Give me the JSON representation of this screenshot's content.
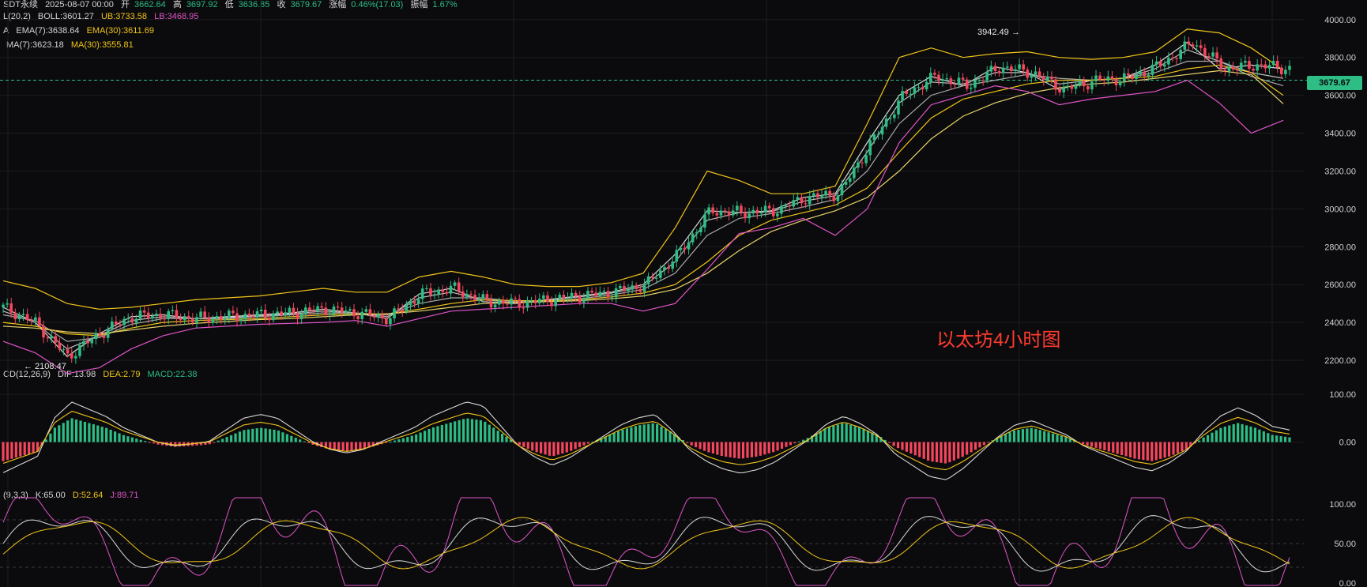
{
  "header": {
    "symbol": "SDT永续",
    "date": "2025-08-07 00:00",
    "open_label": "开",
    "open": "3662.64",
    "high_label": "高",
    "high": "3697.92",
    "low_label": "低",
    "low": "3636.85",
    "close_label": "收",
    "close": "3679.67",
    "change_label": "涨幅",
    "change": "0.46%(17.03)",
    "amp_label": "振幅",
    "amp": "1.67%"
  },
  "indicators": {
    "boll_prefix": "L(20,2)",
    "boll": "BOLL:3601.27",
    "ub": "UB:3733.58",
    "lb": "LB:3468.95",
    "ema_prefix": "A",
    "ema7": "EMA(7):3638.64",
    "ema30": "EMA(30):3611.69",
    "ma7": "MA(7):3623.18",
    "ma30": "MA(30):3555.81",
    "macd_prefix": "CD(12,26,9)",
    "dif": "DIF:13.98",
    "dea": "DEA:2.79",
    "macd": "MACD:22.38",
    "kdj_prefix": "(9,3,3)",
    "k": "K:65.00",
    "d": "D:52.64",
    "j": "J:89.71"
  },
  "price_tag": "3679.67",
  "high_marker": "3942.49 →",
  "low_marker": "← 2108.47",
  "annotation": "以太坊4小时图",
  "colors": {
    "up": "#2dbd85",
    "down": "#f6465d",
    "yellow": "#f0c419",
    "magenta": "#e055c9",
    "white": "#d9d9d9"
  },
  "chart_data": [
    {
      "type": "line",
      "panel": "price",
      "y_axis_ticks": [
        "4000.00",
        "3800.00",
        "3600.00",
        "3400.00",
        "3200.00",
        "3000.00",
        "2800.00",
        "2600.00",
        "2400.00",
        "2200.00"
      ],
      "ylim": [
        2100,
        4020
      ],
      "x": [
        0,
        5,
        10,
        15,
        20,
        25,
        30,
        35,
        40,
        45,
        50,
        55,
        60,
        65,
        70,
        75,
        80,
        85,
        90,
        95,
        100,
        105,
        110,
        115,
        120,
        125,
        130,
        135,
        140,
        145,
        150,
        155,
        160,
        165,
        170,
        175,
        180,
        185,
        190,
        195,
        200
      ],
      "series": [
        {
          "values": [
            2480,
            2400,
            2220,
            2340,
            2430,
            2440,
            2420,
            2430,
            2440,
            2450,
            2470,
            2450,
            2420,
            2550,
            2580,
            2510,
            2500,
            2520,
            2540,
            2560,
            2600,
            2760,
            2990,
            2980,
            2990,
            3060,
            3080,
            3350,
            3600,
            3700,
            3650,
            3750,
            3720,
            3630,
            3680,
            3690,
            3760,
            3880,
            3740,
            3760,
            3740
          ]
        },
        {
          "values": [
            2460,
            2400,
            2260,
            2330,
            2410,
            2430,
            2420,
            2425,
            2435,
            2445,
            2460,
            2450,
            2430,
            2530,
            2560,
            2520,
            2505,
            2515,
            2535,
            2555,
            2590,
            2720,
            2940,
            2980,
            2985,
            3040,
            3070,
            3300,
            3560,
            3670,
            3660,
            3720,
            3720,
            3660,
            3680,
            3690,
            3740,
            3840,
            3780,
            3720,
            3690
          ]
        },
        {
          "values": [
            2440,
            2410,
            2300,
            2320,
            2390,
            2420,
            2420,
            2420,
            2430,
            2440,
            2450,
            2450,
            2440,
            2500,
            2530,
            2530,
            2510,
            2510,
            2525,
            2545,
            2575,
            2660,
            2860,
            2950,
            2975,
            3010,
            3050,
            3200,
            3450,
            3600,
            3650,
            3680,
            3710,
            3690,
            3680,
            3690,
            3720,
            3780,
            3780,
            3700,
            3650
          ]
        },
        {
          "values": [
            2400,
            2380,
            2340,
            2330,
            2370,
            2400,
            2410,
            2415,
            2420,
            2430,
            2440,
            2445,
            2445,
            2470,
            2500,
            2520,
            2515,
            2515,
            2520,
            2535,
            2555,
            2600,
            2720,
            2860,
            2940,
            2980,
            3020,
            3110,
            3300,
            3480,
            3580,
            3620,
            3660,
            3680,
            3680,
            3690,
            3700,
            3740,
            3760,
            3720,
            3600
          ]
        },
        {
          "values": [
            2380,
            2370,
            2350,
            2340,
            2360,
            2380,
            2395,
            2405,
            2415,
            2420,
            2430,
            2440,
            2445,
            2460,
            2480,
            2500,
            2505,
            2510,
            2515,
            2525,
            2540,
            2575,
            2660,
            2780,
            2880,
            2940,
            2990,
            3060,
            3200,
            3370,
            3490,
            3560,
            3610,
            3640,
            3660,
            3670,
            3690,
            3710,
            3730,
            3710,
            3555
          ]
        },
        {
          "values": [
            2620,
            2580,
            2500,
            2470,
            2480,
            2500,
            2520,
            2530,
            2540,
            2560,
            2580,
            2560,
            2560,
            2640,
            2670,
            2640,
            2600,
            2590,
            2590,
            2610,
            2660,
            2900,
            3200,
            3150,
            3080,
            3080,
            3120,
            3450,
            3800,
            3850,
            3800,
            3820,
            3830,
            3800,
            3790,
            3800,
            3830,
            3950,
            3930,
            3850,
            3733
          ]
        },
        {
          "values": [
            2300,
            2240,
            2130,
            2160,
            2260,
            2330,
            2370,
            2380,
            2390,
            2395,
            2400,
            2410,
            2380,
            2420,
            2460,
            2470,
            2480,
            2490,
            2500,
            2500,
            2460,
            2500,
            2680,
            2870,
            2900,
            2950,
            2860,
            3000,
            3350,
            3550,
            3600,
            3650,
            3620,
            3550,
            3580,
            3600,
            3620,
            3680,
            3560,
            3400,
            3468
          ]
        }
      ]
    },
    {
      "type": "bar",
      "panel": "macd",
      "y_axis_ticks": [
        "100.00",
        "0.00"
      ],
      "ylim": [
        -100,
        140
      ],
      "histogram": [
        -40,
        -30,
        -20,
        30,
        50,
        40,
        30,
        15,
        5,
        -5,
        -10,
        -8,
        -5,
        10,
        25,
        30,
        25,
        10,
        -5,
        -15,
        -20,
        -15,
        -5,
        5,
        15,
        30,
        40,
        50,
        45,
        20,
        -5,
        -20,
        -30,
        -20,
        -5,
        10,
        25,
        35,
        40,
        20,
        -5,
        -20,
        -30,
        -35,
        -30,
        -20,
        -5,
        10,
        30,
        40,
        30,
        15,
        -10,
        -25,
        -40,
        -45,
        -30,
        -10,
        10,
        25,
        30,
        20,
        10,
        -5,
        -15,
        -25,
        -35,
        -40,
        -30,
        -15,
        10,
        30,
        40,
        30,
        15,
        10
      ]
    },
    {
      "type": "line",
      "panel": "kdj",
      "y_axis_ticks": [
        "100.00",
        "50.00",
        "0.00"
      ],
      "ylim": [
        -5,
        110
      ]
    }
  ]
}
